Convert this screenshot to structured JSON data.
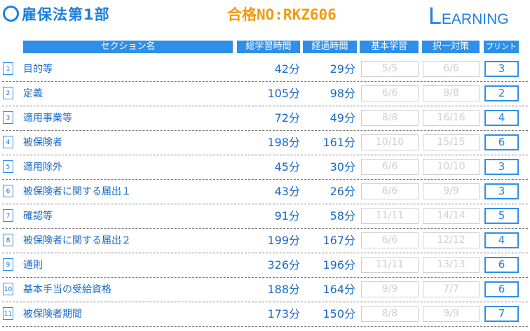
{
  "header": {
    "title": "雇保法第1部",
    "pass_no": "合格NO:RKZ606",
    "logo_initial": "L",
    "logo_rest": "EARNING"
  },
  "columns": {
    "section": "セクション名",
    "total_time": "総学習時間",
    "elapsed_time": "経過時間",
    "basic": "基本学習",
    "choice": "択一対策",
    "print": "プリント"
  },
  "rows": [
    {
      "no": "1",
      "name": "目的等",
      "total": "42分",
      "elapsed": "29分",
      "basic": "5/5",
      "choice": "6/6",
      "print": "3"
    },
    {
      "no": "2",
      "name": "定義",
      "total": "105分",
      "elapsed": "98分",
      "basic": "6/6",
      "choice": "8/8",
      "print": "2"
    },
    {
      "no": "3",
      "name": "適用事業等",
      "total": "72分",
      "elapsed": "49分",
      "basic": "8/8",
      "choice": "16/16",
      "print": "4"
    },
    {
      "no": "4",
      "name": "被保険者",
      "total": "198分",
      "elapsed": "161分",
      "basic": "10/10",
      "choice": "15/15",
      "print": "6"
    },
    {
      "no": "5",
      "name": "適用除外",
      "total": "45分",
      "elapsed": "30分",
      "basic": "6/6",
      "choice": "10/10",
      "print": "3"
    },
    {
      "no": "6",
      "name": "被保険者に関する届出１",
      "total": "43分",
      "elapsed": "26分",
      "basic": "6/6",
      "choice": "9/9",
      "print": "3"
    },
    {
      "no": "7",
      "name": "確認等",
      "total": "91分",
      "elapsed": "58分",
      "basic": "11/11",
      "choice": "14/14",
      "print": "5"
    },
    {
      "no": "8",
      "name": "被保険者に関する届出２",
      "total": "199分",
      "elapsed": "167分",
      "basic": "6/6",
      "choice": "12/12",
      "print": "4"
    },
    {
      "no": "9",
      "name": "通則",
      "total": "326分",
      "elapsed": "196分",
      "basic": "11/11",
      "choice": "13/13",
      "print": "6"
    },
    {
      "no": "10",
      "name": "基本手当の受給資格",
      "total": "188分",
      "elapsed": "164分",
      "basic": "9/9",
      "choice": "7/7",
      "print": "6"
    },
    {
      "no": "11",
      "name": "被保険者期間",
      "total": "173分",
      "elapsed": "150分",
      "basic": "8/8",
      "choice": "9/9",
      "print": "7"
    }
  ],
  "colors": {
    "accent": "#2f8fe8",
    "pass_no": "#f39a0c",
    "disabled": "#cfcfcf"
  }
}
